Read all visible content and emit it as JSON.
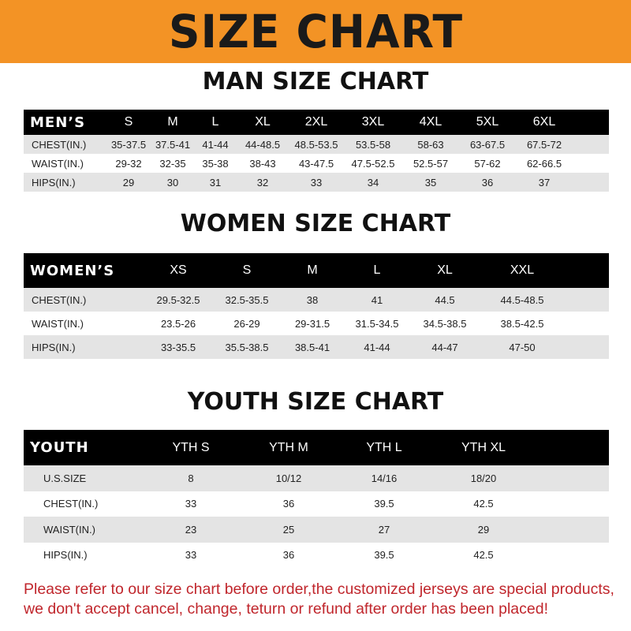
{
  "title": "SIZE CHART",
  "men": {
    "title": "MAN SIZE CHART",
    "header": [
      "MEN’S",
      "S",
      "M",
      "L",
      "XL",
      "2XL",
      "3XL",
      "4XL",
      "5XL",
      "6XL"
    ],
    "rows": [
      [
        "CHEST(IN.)",
        "35-37.5",
        "37.5-41",
        "41-44",
        "44-48.5",
        "48.5-53.5",
        "53.5-58",
        "58-63",
        "63-67.5",
        "67.5-72"
      ],
      [
        "WAIST(IN.)",
        "29-32",
        "32-35",
        "35-38",
        "38-43",
        "43-47.5",
        "47.5-52.5",
        "52.5-57",
        "57-62",
        "62-66.5"
      ],
      [
        "HIPS(IN.)",
        "29",
        "30",
        "31",
        "32",
        "33",
        "34",
        "35",
        "36",
        "37"
      ]
    ]
  },
  "women": {
    "title": "WOMEN SIZE CHART",
    "header": [
      "WOMEN’S",
      "XS",
      "S",
      "M",
      "L",
      "XL",
      "XXL"
    ],
    "rows": [
      [
        "CHEST(IN.)",
        "29.5-32.5",
        "32.5-35.5",
        "38",
        "41",
        "44.5",
        "44.5-48.5"
      ],
      [
        "WAIST(IN.)",
        "23.5-26",
        "26-29",
        "29-31.5",
        "31.5-34.5",
        "34.5-38.5",
        "38.5-42.5"
      ],
      [
        "HIPS(IN.)",
        "33-35.5",
        "35.5-38.5",
        "38.5-41",
        "41-44",
        "44-47",
        "47-50"
      ]
    ]
  },
  "youth": {
    "title": "YOUTH SIZE CHART",
    "header": [
      "YOUTH",
      "YTH S",
      "YTH M",
      "YTH L",
      "YTH XL"
    ],
    "rows": [
      [
        "U.S.SIZE",
        "8",
        "10/12",
        "14/16",
        "18/20"
      ],
      [
        "CHEST(IN.)",
        "33",
        "36",
        "39.5",
        "42.5"
      ],
      [
        "WAIST(IN.)",
        "23",
        "25",
        "27",
        "29"
      ],
      [
        "HIPS(IN.)",
        "33",
        "36",
        "39.5",
        "42.5"
      ]
    ]
  },
  "footer": {
    "line1": "Please refer to our size chart before order,the customized jerseys are special products,",
    "line2": "we don't accept cancel, change, teturn or refund after order has been placed!"
  },
  "colors": {
    "banner": "#f39325",
    "header_row": "#000000",
    "stripe": "#e4e4e4",
    "footer_text": "#c0262c"
  }
}
